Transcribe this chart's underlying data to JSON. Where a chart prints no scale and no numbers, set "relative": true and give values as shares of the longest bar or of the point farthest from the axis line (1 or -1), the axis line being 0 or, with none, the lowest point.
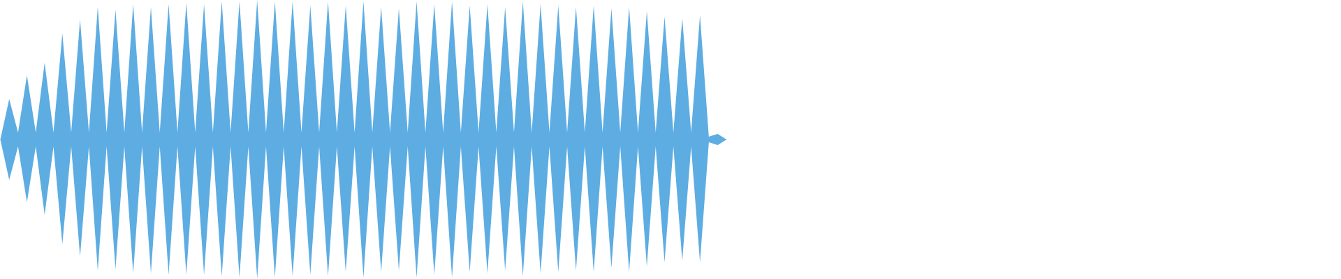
{
  "chart_data": {
    "type": "area",
    "relative": true,
    "categories": [
      null,
      null,
      null,
      null,
      null,
      null,
      null,
      null,
      null,
      null,
      null,
      null,
      null,
      null,
      null,
      null,
      null,
      null,
      null,
      null,
      null,
      null,
      null,
      null,
      null,
      null,
      null,
      null,
      null,
      null,
      null,
      null,
      null,
      null,
      null,
      null,
      null,
      null,
      null,
      null,
      null,
      null,
      null,
      null,
      null,
      null,
      null,
      null,
      null,
      null,
      null,
      null,
      null,
      null,
      null,
      null,
      null,
      null,
      null,
      null,
      null,
      null,
      null,
      null,
      null,
      null,
      null,
      null,
      null,
      null,
      null,
      null,
      null,
      null,
      null,
      null,
      null,
      null,
      null,
      null,
      null,
      null,
      null
    ],
    "series": [
      {
        "color": "#5dade2",
        "values": [
          0,
          0.29,
          0.05,
          0.46,
          0.05,
          0.55,
          0.05,
          0.76,
          0.05,
          0.86,
          0.05,
          0.95,
          0.05,
          0.93,
          0.05,
          0.97,
          0.05,
          0.95,
          0.05,
          0.97,
          0.05,
          0.98,
          0.05,
          0.97,
          0.05,
          0.99,
          0.05,
          0.99,
          0.05,
          1,
          0.05,
          0.99,
          0.05,
          0.99,
          0.05,
          0.96,
          0.05,
          0.99,
          0.05,
          0.96,
          0.05,
          0.99,
          0.05,
          0.95,
          0.05,
          0.94,
          0.05,
          0.99,
          0.05,
          0.97,
          0.05,
          0.99,
          0.05,
          0.96,
          0.05,
          0.97,
          0.05,
          0.95,
          0.05,
          0.99,
          0.05,
          0.97,
          0.05,
          0.96,
          0.05,
          0.95,
          0.05,
          0.96,
          0.05,
          0.94,
          0.05,
          0.95,
          0.05,
          0.92,
          0.05,
          0.88,
          0.05,
          0.87,
          0.05,
          0.89,
          0.02,
          0.04,
          0
        ]
      },
      {
        "color": "#5dade2",
        "values": [
          0,
          -0.29,
          -0.05,
          -0.45,
          -0.05,
          -0.54,
          -0.05,
          -0.75,
          -0.05,
          -0.84,
          -0.05,
          -0.94,
          -0.05,
          -0.93,
          -0.05,
          -0.96,
          -0.05,
          -0.96,
          -0.05,
          -0.97,
          -0.05,
          -0.97,
          -0.05,
          -0.97,
          -0.05,
          -0.98,
          -0.05,
          -0.99,
          -0.05,
          -1,
          -0.05,
          -0.99,
          -0.05,
          -0.98,
          -0.05,
          -0.97,
          -0.05,
          -0.98,
          -0.05,
          -0.95,
          -0.05,
          -0.99,
          -0.05,
          -0.95,
          -0.05,
          -0.94,
          -0.05,
          -0.99,
          -0.05,
          -0.97,
          -0.05,
          -0.99,
          -0.05,
          -0.95,
          -0.05,
          -0.96,
          -0.05,
          -0.94,
          -0.05,
          -0.98,
          -0.05,
          -0.96,
          -0.05,
          -0.95,
          -0.05,
          -0.94,
          -0.05,
          -0.95,
          -0.05,
          -0.92,
          -0.05,
          -0.95,
          -0.05,
          -0.91,
          -0.05,
          -0.88,
          -0.05,
          -0.87,
          -0.05,
          -0.88,
          -0.02,
          -0.04,
          0
        ]
      }
    ]
  }
}
